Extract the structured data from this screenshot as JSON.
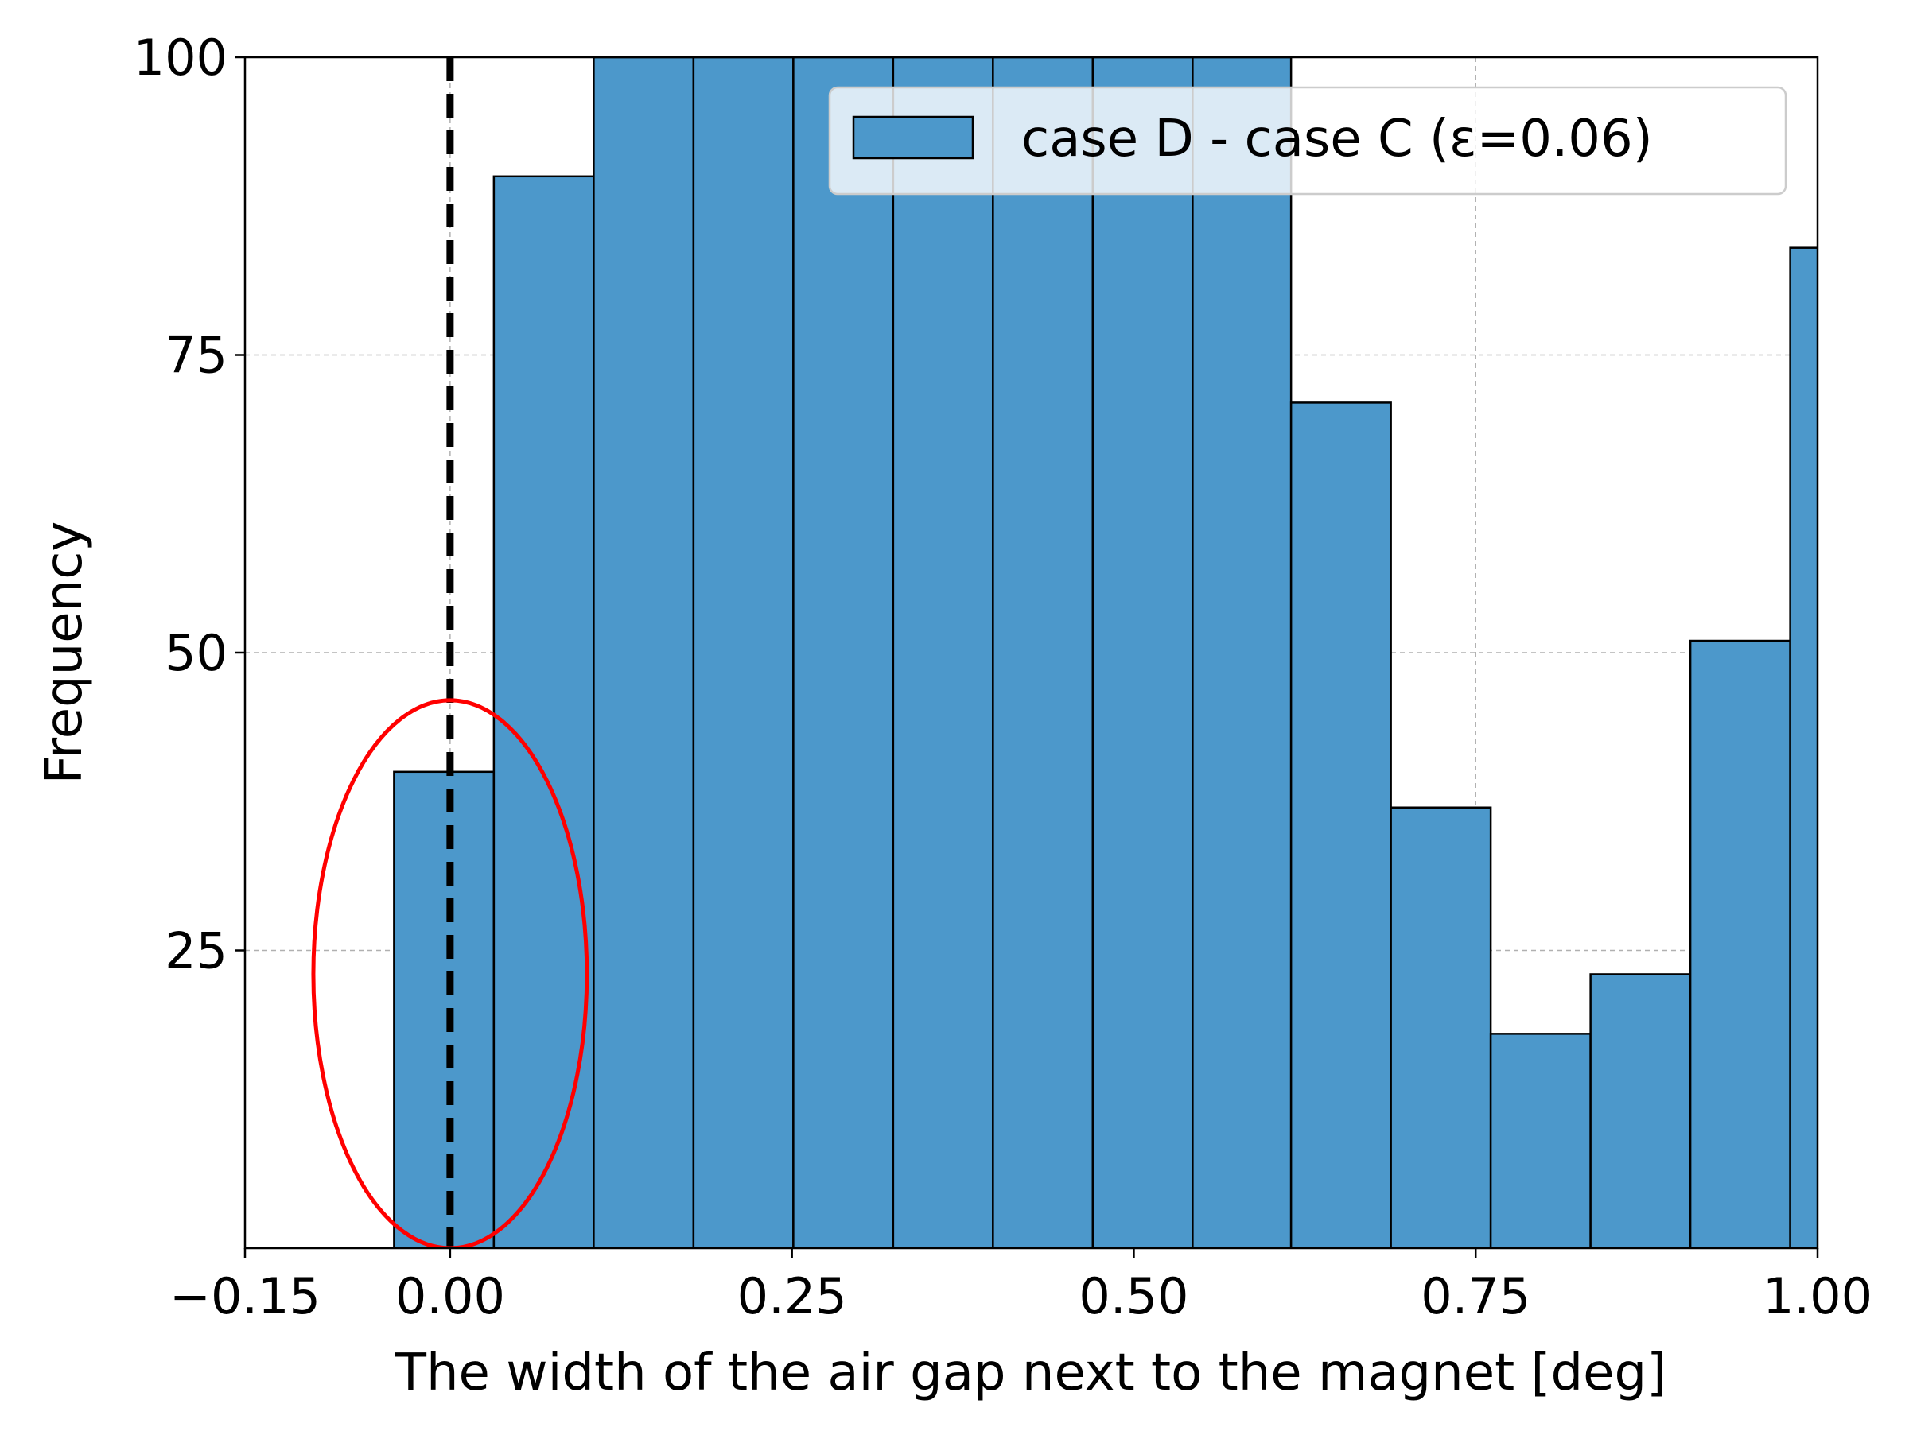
{
  "chart_data": {
    "type": "bar",
    "subtype": "histogram",
    "xlabel": "The width of the air gap next to the magnet [deg]",
    "ylabel": "Frequency",
    "xlim": [
      -0.15,
      1.0
    ],
    "ylim": [
      0,
      100
    ],
    "x_ticks": [
      "−0.15",
      "0.00",
      "0.25",
      "0.50",
      "0.75",
      "1.00"
    ],
    "x_tick_values": [
      -0.15,
      0.0,
      0.25,
      0.5,
      0.75,
      1.0
    ],
    "y_ticks": [
      "25",
      "50",
      "75",
      "100"
    ],
    "y_tick_values": [
      25,
      50,
      75,
      100
    ],
    "grid": true,
    "legend_position": "top-right",
    "series": [
      {
        "name": "case D - case C (ε=0.06)",
        "color": "#4c98cb",
        "edge_color": "#000000",
        "bins": [
          {
            "left": -0.041,
            "right": 0.032,
            "count": 40
          },
          {
            "left": 0.032,
            "right": 0.105,
            "count": 90
          },
          {
            "left": 0.105,
            "right": 0.178,
            "count": 100
          },
          {
            "left": 0.178,
            "right": 0.251,
            "count": 100
          },
          {
            "left": 0.251,
            "right": 0.324,
            "count": 100
          },
          {
            "left": 0.324,
            "right": 0.397,
            "count": 100
          },
          {
            "left": 0.397,
            "right": 0.47,
            "count": 100
          },
          {
            "left": 0.47,
            "right": 0.543,
            "count": 100
          },
          {
            "left": 0.543,
            "right": 0.615,
            "count": 100
          },
          {
            "left": 0.615,
            "right": 0.688,
            "count": 71
          },
          {
            "left": 0.688,
            "right": 0.761,
            "count": 37
          },
          {
            "left": 0.761,
            "right": 0.834,
            "count": 18
          },
          {
            "left": 0.834,
            "right": 0.907,
            "count": 23
          },
          {
            "left": 0.907,
            "right": 0.98,
            "count": 51
          },
          {
            "left": 0.98,
            "right": 1.053,
            "count": 84
          }
        ]
      }
    ],
    "annotations": [
      {
        "type": "vline",
        "x": 0.0,
        "style": "dashed",
        "color": "#000000"
      },
      {
        "type": "ellipse",
        "center_x": 0.0,
        "center_y": 23,
        "rx": 0.1,
        "ry": 23,
        "color": "#ff0000"
      }
    ]
  }
}
